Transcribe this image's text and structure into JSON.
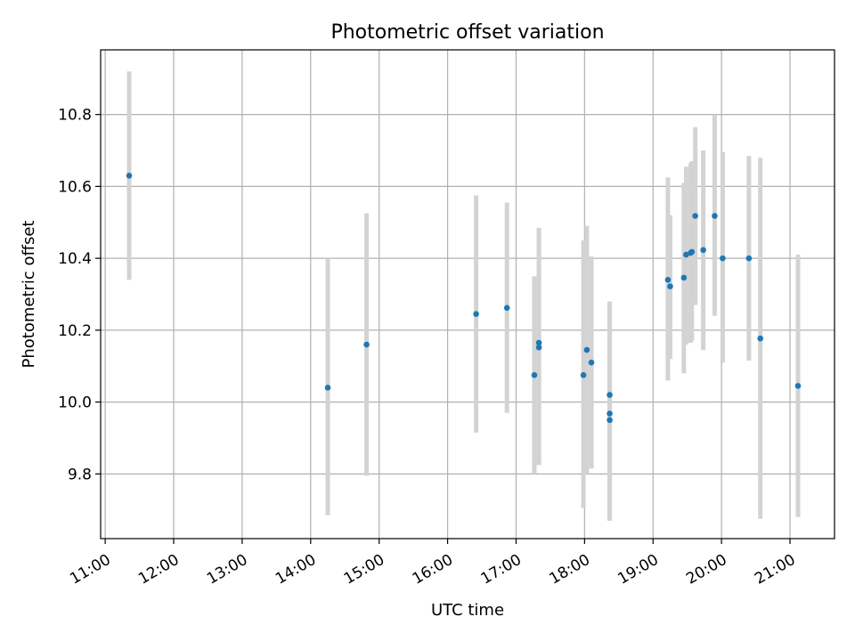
{
  "chart_data": {
    "type": "scatter",
    "title": "Photometric offset variation",
    "xlabel": "UTC time",
    "ylabel": "Photometric offset",
    "xlim": [
      "10:56",
      "21:39"
    ],
    "ylim": [
      9.62,
      10.98
    ],
    "x_ticks": [
      "11:00",
      "12:00",
      "13:00",
      "14:00",
      "15:00",
      "16:00",
      "17:00",
      "18:00",
      "19:00",
      "20:00",
      "21:00"
    ],
    "y_ticks": [
      9.8,
      10.0,
      10.2,
      10.4,
      10.6,
      10.8
    ],
    "grid": true,
    "point_color": "#1f77b4",
    "errorbar_color": "#d3d3d3",
    "points": [
      {
        "t": "11:21",
        "y": 10.63,
        "lo": 10.34,
        "hi": 10.92
      },
      {
        "t": "14:15",
        "y": 10.04,
        "lo": 9.685,
        "hi": 10.4
      },
      {
        "t": "14:49",
        "y": 10.16,
        "lo": 9.795,
        "hi": 10.525
      },
      {
        "t": "16:25",
        "y": 10.245,
        "lo": 9.915,
        "hi": 10.575
      },
      {
        "t": "16:52",
        "y": 10.262,
        "lo": 9.97,
        "hi": 10.555
      },
      {
        "t": "17:16",
        "y": 10.075,
        "lo": 9.8,
        "hi": 10.35
      },
      {
        "t": "17:20",
        "y": 10.165,
        "lo": 9.825,
        "hi": 10.485
      },
      {
        "t": "17:20",
        "y": 10.152,
        "lo": 9.825,
        "hi": 10.48
      },
      {
        "t": "17:59",
        "y": 10.075,
        "lo": 9.705,
        "hi": 10.45
      },
      {
        "t": "18:02",
        "y": 10.145,
        "lo": 9.8,
        "hi": 10.49
      },
      {
        "t": "18:06",
        "y": 10.11,
        "lo": 9.815,
        "hi": 10.405
      },
      {
        "t": "18:22",
        "y": 10.02,
        "lo": 9.76,
        "hi": 10.28
      },
      {
        "t": "18:22",
        "y": 9.968,
        "lo": 9.67,
        "hi": 10.27
      },
      {
        "t": "18:22",
        "y": 9.95,
        "lo": 9.67,
        "hi": 10.23
      },
      {
        "t": "19:13",
        "y": 10.34,
        "lo": 10.06,
        "hi": 10.625
      },
      {
        "t": "19:15",
        "y": 10.322,
        "lo": 10.12,
        "hi": 10.52
      },
      {
        "t": "19:27",
        "y": 10.346,
        "lo": 10.08,
        "hi": 10.61
      },
      {
        "t": "19:29",
        "y": 10.41,
        "lo": 10.16,
        "hi": 10.655
      },
      {
        "t": "19:33",
        "y": 10.415,
        "lo": 10.165,
        "hi": 10.665
      },
      {
        "t": "19:34",
        "y": 10.418,
        "lo": 10.17,
        "hi": 10.67
      },
      {
        "t": "19:37",
        "y": 10.518,
        "lo": 10.27,
        "hi": 10.765
      },
      {
        "t": "19:44",
        "y": 10.423,
        "lo": 10.145,
        "hi": 10.7
      },
      {
        "t": "19:54",
        "y": 10.518,
        "lo": 10.24,
        "hi": 10.8
      },
      {
        "t": "20:01",
        "y": 10.4,
        "lo": 10.11,
        "hi": 10.695
      },
      {
        "t": "20:24",
        "y": 10.4,
        "lo": 10.115,
        "hi": 10.685
      },
      {
        "t": "20:34",
        "y": 10.177,
        "lo": 9.675,
        "hi": 10.68
      },
      {
        "t": "21:07",
        "y": 10.045,
        "lo": 9.68,
        "hi": 10.41
      }
    ]
  }
}
